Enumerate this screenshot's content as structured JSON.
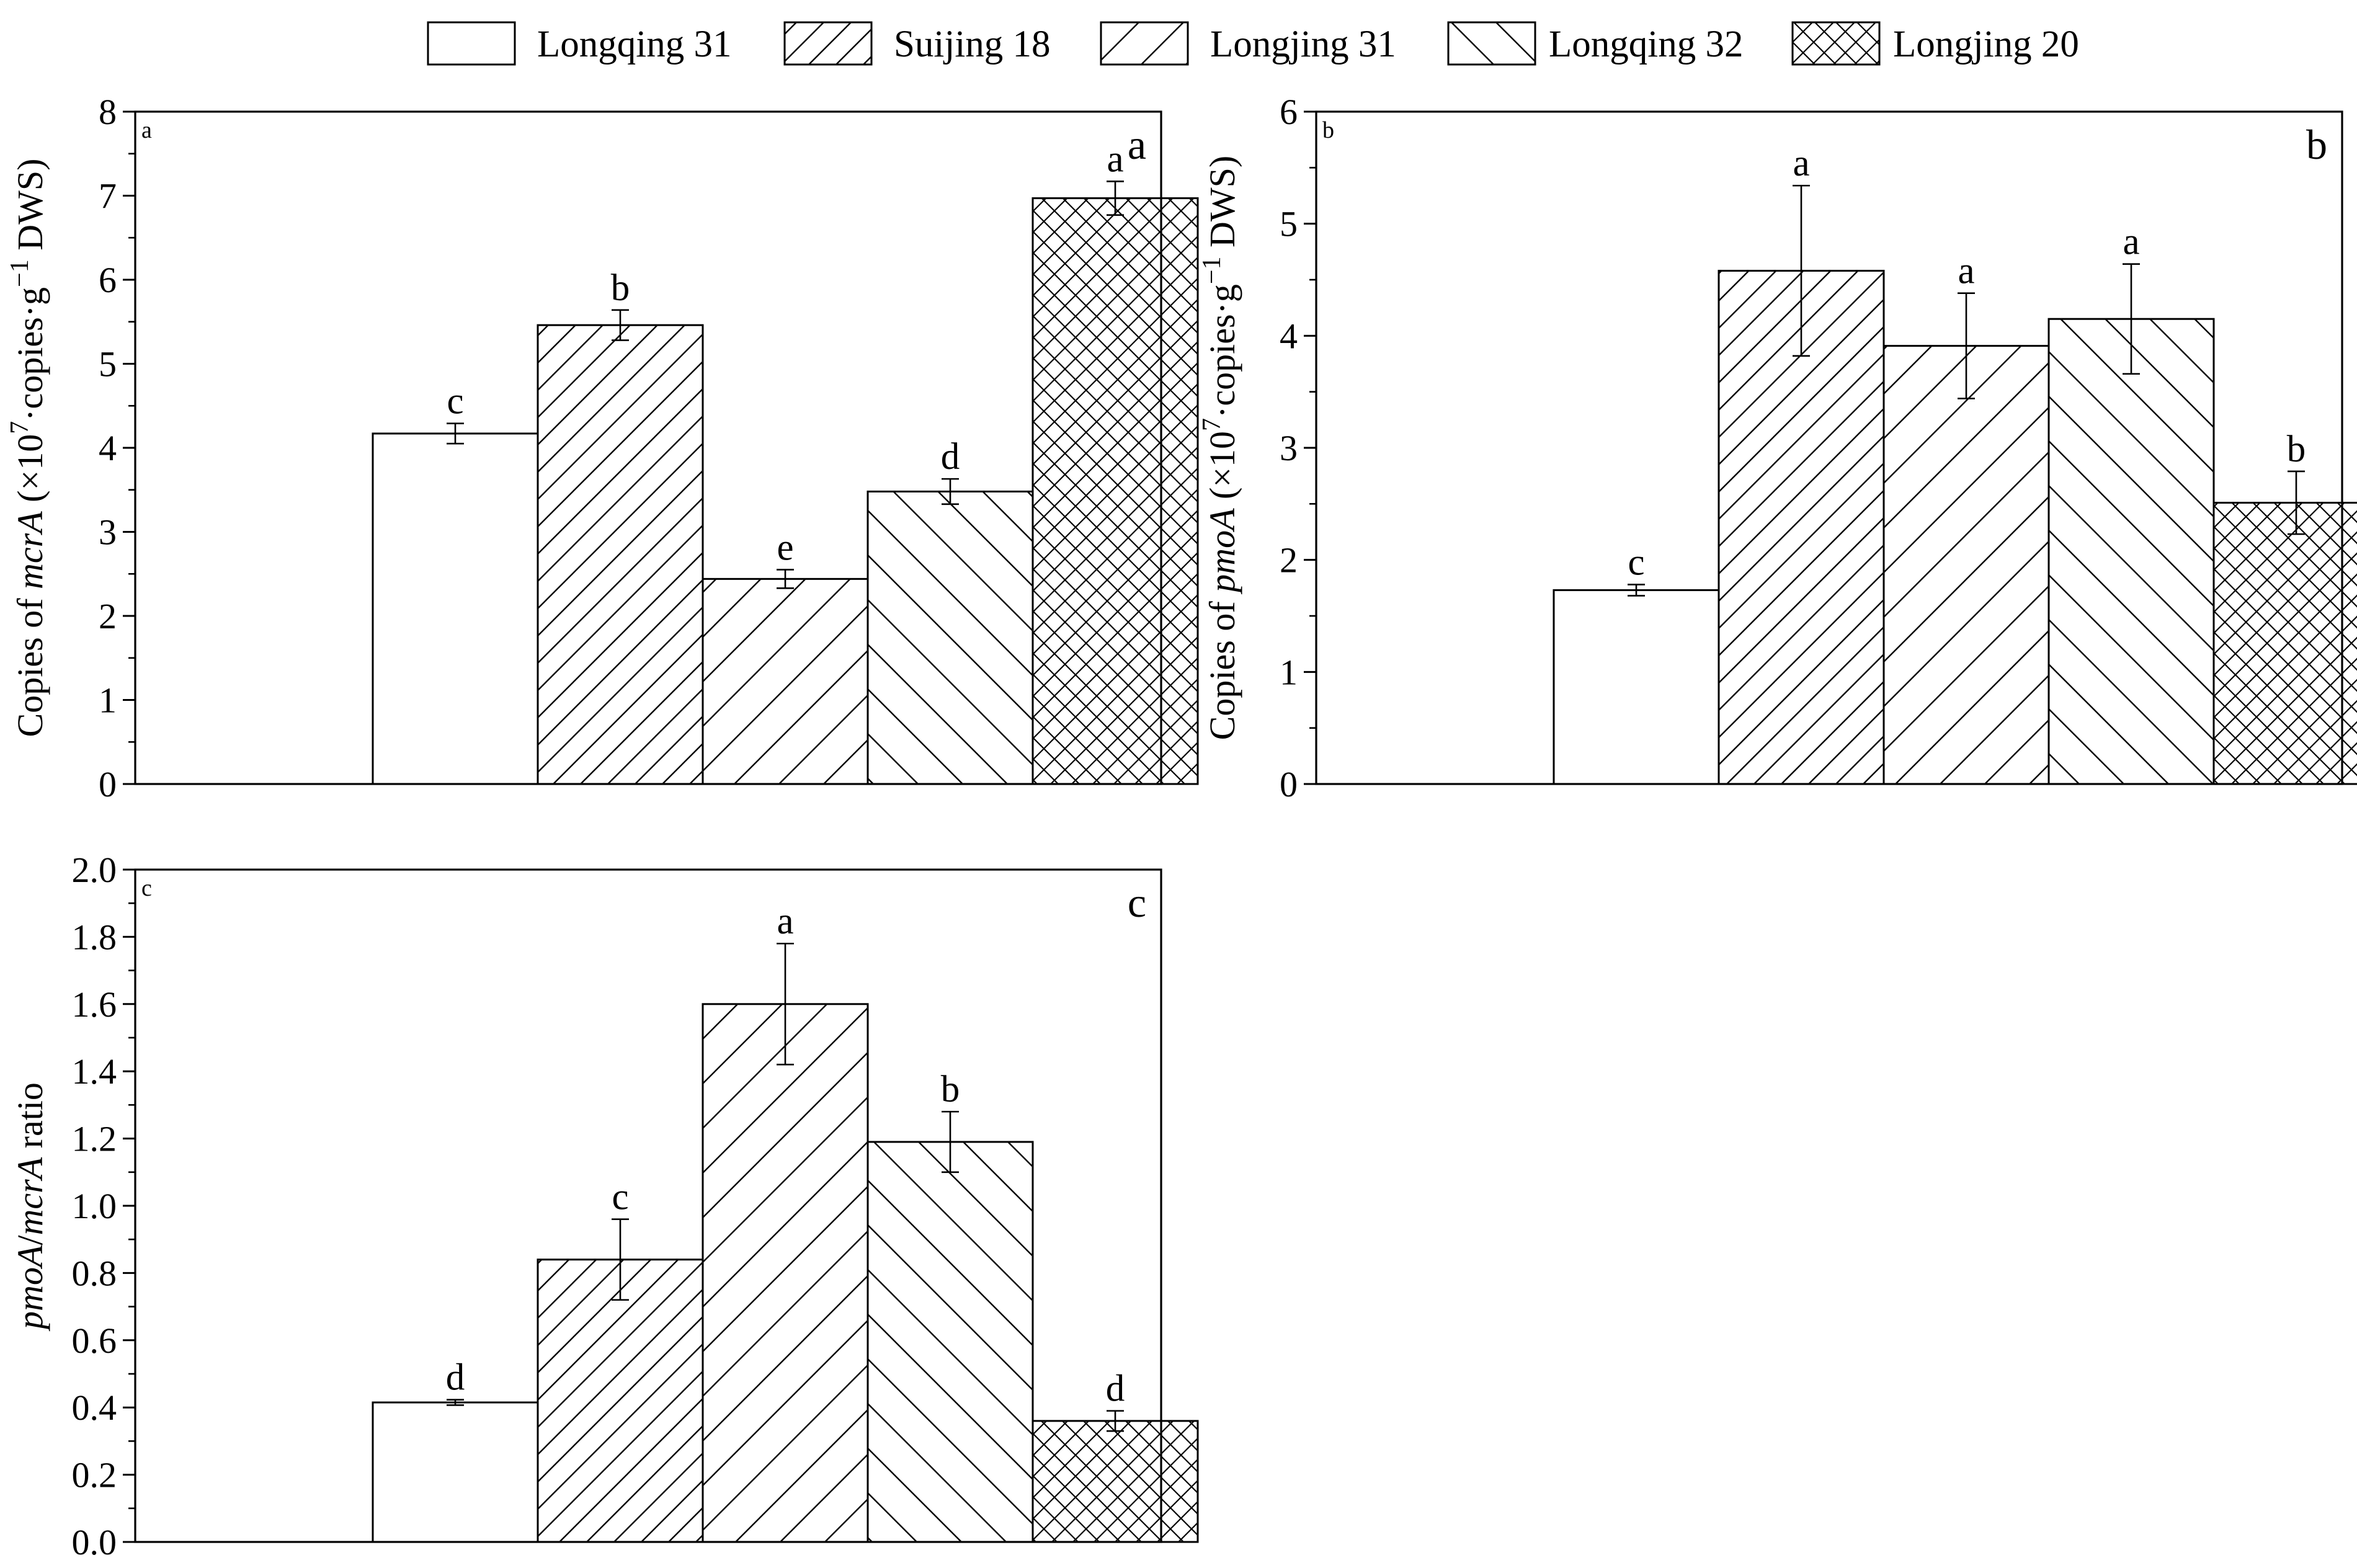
{
  "legend": [
    {
      "label": "Longqing 31",
      "pattern": "none"
    },
    {
      "label": "Suijing 18",
      "pattern": "hatch-fwd-dense"
    },
    {
      "label": "Longjing 31",
      "pattern": "hatch-fwd"
    },
    {
      "label": "Longqing 32",
      "pattern": "hatch-back"
    },
    {
      "label": "Longjing 20",
      "pattern": "crosshatch"
    }
  ],
  "colors": {
    "ink": "#000000",
    "background": "#ffffff"
  },
  "chart_data": [
    {
      "type": "bar",
      "panel": "a",
      "corner_small": "a",
      "corner_big": "a",
      "categories": [
        "Longqing 31",
        "Suijing 18",
        "Longjing 31",
        "Longqing 32",
        "Longjing 20"
      ],
      "values": [
        4.17,
        5.46,
        2.44,
        3.48,
        6.97
      ],
      "errors": [
        0.12,
        0.18,
        0.11,
        0.15,
        0.2
      ],
      "significance": [
        "c",
        "b",
        "e",
        "d",
        "a"
      ],
      "ylabel_parts": [
        "Copies of ",
        "mcrA",
        " (×10",
        "7",
        "·copies·g",
        "−1",
        " DWS)"
      ],
      "ylim": [
        0,
        8
      ],
      "yticks": [
        "0",
        "1",
        "2",
        "3",
        "4",
        "5",
        "6",
        "7",
        "8"
      ],
      "title": "",
      "xlabel": "",
      "grid": false
    },
    {
      "type": "bar",
      "panel": "b",
      "corner_small": "b",
      "corner_big": "b",
      "categories": [
        "Longqing 31",
        "Suijing 18",
        "Longjing 31",
        "Longqing 32",
        "Longjing 20"
      ],
      "values": [
        1.73,
        4.58,
        3.91,
        4.15,
        2.51
      ],
      "errors": [
        0.05,
        0.76,
        0.47,
        0.49,
        0.28
      ],
      "significance": [
        "c",
        "a",
        "a",
        "a",
        "b"
      ],
      "ylabel_parts": [
        "Copies of ",
        "pmoA",
        " (×10",
        "7",
        "·copies·g",
        "−1",
        " DWS)"
      ],
      "ylim": [
        0,
        6
      ],
      "yticks": [
        "0",
        "1",
        "2",
        "3",
        "4",
        "5",
        "6"
      ],
      "title": "",
      "xlabel": "",
      "grid": false
    },
    {
      "type": "bar",
      "panel": "c",
      "corner_small": "c",
      "corner_big": "c",
      "categories": [
        "Longqing 31",
        "Suijing 18",
        "Longjing 31",
        "Longqing 32",
        "Longjing 20"
      ],
      "values": [
        0.415,
        0.84,
        1.6,
        1.19,
        0.36
      ],
      "errors": [
        0.008,
        0.12,
        0.18,
        0.09,
        0.03
      ],
      "significance": [
        "d",
        "c",
        "a",
        "b",
        "d"
      ],
      "ylabel_parts": [
        "pmoA",
        "/",
        "mcrA",
        " ratio"
      ],
      "ylim": [
        0,
        2
      ],
      "yticks": [
        "0.0",
        "0.2",
        "0.4",
        "0.6",
        "0.8",
        "1.0",
        "1.2",
        "1.4",
        "1.6",
        "1.8",
        "2.0"
      ],
      "title": "",
      "xlabel": "",
      "grid": false
    }
  ]
}
